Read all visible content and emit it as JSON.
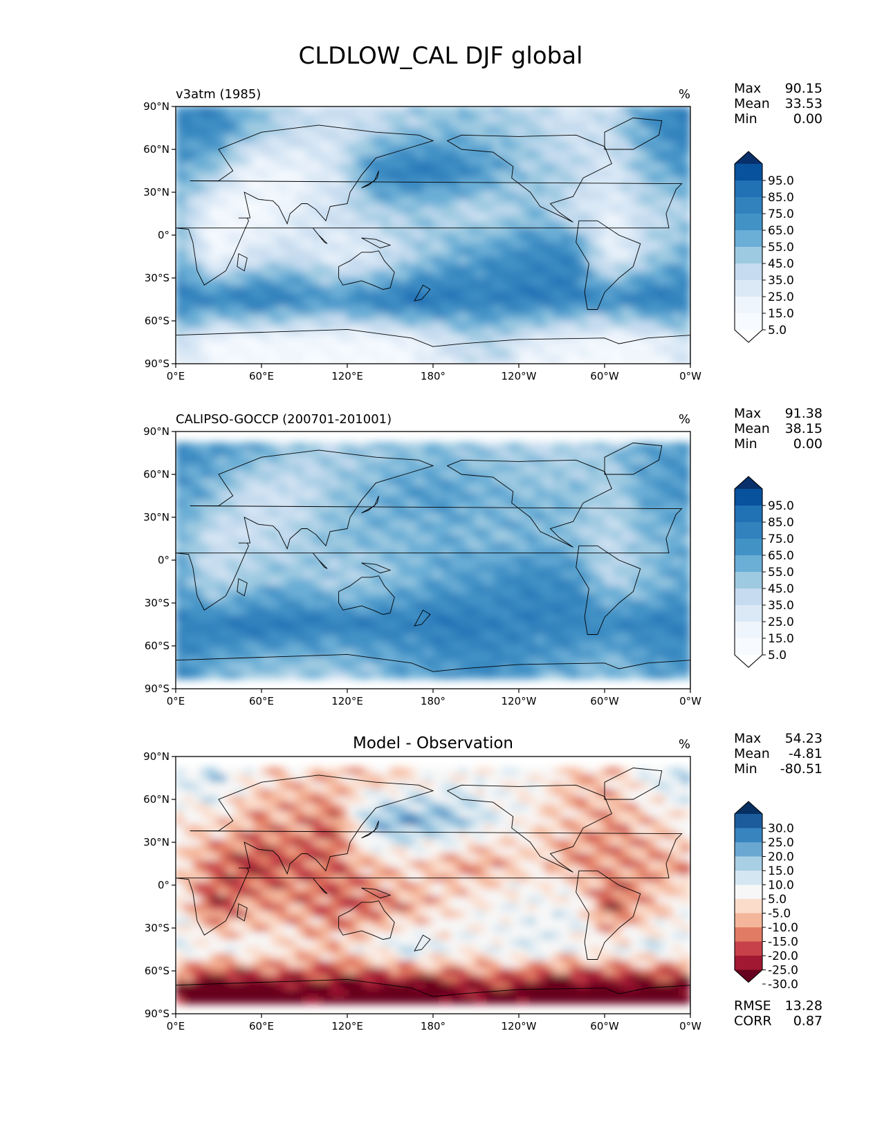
{
  "figure": {
    "title": "CLDLOW_CAL DJF global"
  },
  "chart_data": [
    {
      "type": "heatmap",
      "title": "v3atm (1985)",
      "units": "%",
      "stats": {
        "max_label": "Max",
        "max": "90.15",
        "mean_label": "Mean",
        "mean": "33.53",
        "min_label": "Min",
        "min": "0.00"
      },
      "xticks": [
        "0°E",
        "60°E",
        "120°E",
        "180°",
        "120°W",
        "60°W",
        "0°W"
      ],
      "yticks": [
        "90°N",
        "60°N",
        "30°N",
        "0°",
        "30°S",
        "60°S",
        "90°S"
      ],
      "xlim": [
        0,
        360
      ],
      "ylim": [
        -90,
        90
      ],
      "colorbar": {
        "extend": "both",
        "levels": [
          "95.0",
          "85.0",
          "75.0",
          "65.0",
          "55.0",
          "45.0",
          "35.0",
          "25.0",
          "15.0",
          "5.0"
        ],
        "colors": [
          "#08306b",
          "#08519c",
          "#2171b5",
          "#3182bd",
          "#4292c6",
          "#6baed6",
          "#9ecae1",
          "#c6dbef",
          "#dbe9f6",
          "#eff5fc",
          "#f7fbff",
          "#ffffff"
        ]
      },
      "field": {
        "label_rows": [
          {
            "lat": 75,
            "values": [
              70,
              65,
              45,
              30,
              25,
              30,
              40,
              45,
              40,
              35,
              25,
              30,
              60,
              70
            ]
          },
          {
            "lat": 45,
            "values": [
              55,
              40,
              10,
              10,
              20,
              65,
              75,
              70,
              55,
              40,
              35,
              20,
              45,
              60
            ]
          },
          {
            "lat": 15,
            "values": [
              45,
              5,
              5,
              15,
              25,
              35,
              40,
              35,
              30,
              45,
              30,
              15,
              30,
              35
            ]
          },
          {
            "lat": -15,
            "values": [
              55,
              5,
              25,
              30,
              15,
              20,
              35,
              50,
              60,
              65,
              70,
              10,
              35,
              55
            ]
          },
          {
            "lat": -45,
            "values": [
              75,
              70,
              75,
              70,
              60,
              70,
              80,
              75,
              70,
              75,
              70,
              65,
              75,
              70
            ]
          },
          {
            "lat": -75,
            "values": [
              30,
              5,
              5,
              5,
              5,
              5,
              10,
              25,
              35,
              15,
              10,
              5,
              10,
              25
            ]
          }
        ]
      }
    },
    {
      "type": "heatmap",
      "title": "CALIPSO-GOCCP (200701-201001)",
      "units": "%",
      "stats": {
        "max_label": "Max",
        "max": "91.38",
        "mean_label": "Mean",
        "mean": "38.15",
        "min_label": "Min",
        "min": "0.00"
      },
      "xticks": [
        "0°E",
        "60°E",
        "120°E",
        "180°",
        "120°W",
        "60°W",
        "0°W"
      ],
      "yticks": [
        "90°N",
        "60°N",
        "30°N",
        "0°",
        "30°S",
        "60°S",
        "90°S"
      ],
      "xlim": [
        0,
        360
      ],
      "ylim": [
        -90,
        90
      ],
      "colorbar": {
        "extend": "both",
        "levels": [
          "95.0",
          "85.0",
          "75.0",
          "65.0",
          "55.0",
          "45.0",
          "35.0",
          "25.0",
          "15.0",
          "5.0"
        ],
        "colors": [
          "#08306b",
          "#08519c",
          "#2171b5",
          "#3182bd",
          "#4292c6",
          "#6baed6",
          "#9ecae1",
          "#c6dbef",
          "#dbe9f6",
          "#eff5fc",
          "#f7fbff",
          "#ffffff"
        ]
      },
      "field": {
        "label_rows": [
          {
            "lat": 75,
            "values": [
              65,
              55,
              50,
              40,
              35,
              40,
              45,
              45,
              40,
              35,
              35,
              40,
              55,
              60
            ]
          },
          {
            "lat": 45,
            "values": [
              60,
              45,
              25,
              25,
              40,
              50,
              55,
              55,
              50,
              45,
              45,
              35,
              55,
              60
            ]
          },
          {
            "lat": 15,
            "values": [
              50,
              25,
              30,
              35,
              45,
              45,
              45,
              50,
              45,
              50,
              45,
              30,
              45,
              50
            ]
          },
          {
            "lat": -15,
            "values": [
              55,
              30,
              40,
              45,
              35,
              40,
              50,
              55,
              60,
              65,
              65,
              35,
              45,
              55
            ]
          },
          {
            "lat": -45,
            "values": [
              70,
              70,
              75,
              75,
              70,
              70,
              70,
              75,
              70,
              70,
              70,
              65,
              70,
              70
            ]
          },
          {
            "lat": -75,
            "values": [
              65,
              50,
              45,
              40,
              40,
              45,
              55,
              60,
              65,
              55,
              50,
              45,
              55,
              60
            ]
          }
        ]
      }
    },
    {
      "type": "heatmap",
      "title": "Model - Observation",
      "units": "%",
      "stats": {
        "max_label": "Max",
        "max": "54.23",
        "mean_label": "Mean",
        "mean": "-4.81",
        "min_label": "Min",
        "min": "-80.51"
      },
      "metrics": {
        "rmse_label": "RMSE",
        "rmse": "13.28",
        "corr_label": "CORR",
        "corr": "0.87"
      },
      "xticks": [
        "0°E",
        "60°E",
        "120°E",
        "180°",
        "120°W",
        "60°W",
        "0°W"
      ],
      "yticks": [
        "90°N",
        "60°N",
        "30°N",
        "0°",
        "30°S",
        "60°S",
        "90°S"
      ],
      "xlim": [
        0,
        360
      ],
      "ylim": [
        -90,
        90
      ],
      "colorbar": {
        "extend": "both",
        "levels": [
          "30.0",
          "25.0",
          "20.0",
          "15.0",
          "10.0",
          "5.0",
          "-5.0",
          "-10.0",
          "-15.0",
          "-20.0",
          "-25.0",
          "-30.0"
        ],
        "colors": [
          "#053061",
          "#1c5c9c",
          "#3784bf",
          "#6aa8d1",
          "#a8cfe4",
          "#d4e6f1",
          "#f7f7f7",
          "#fbdccb",
          "#f4b69a",
          "#e17c64",
          "#c6414a",
          "#a01831",
          "#67001f"
        ]
      },
      "field": {
        "label_rows": [
          {
            "lat": 75,
            "values": [
              5,
              10,
              -5,
              -10,
              -10,
              -10,
              -5,
              0,
              0,
              0,
              -10,
              -10,
              5,
              10
            ]
          },
          {
            "lat": 45,
            "values": [
              -5,
              -5,
              -15,
              -15,
              -20,
              15,
              20,
              15,
              5,
              -5,
              -10,
              -15,
              -10,
              0
            ]
          },
          {
            "lat": 15,
            "values": [
              -5,
              -20,
              -25,
              -20,
              -20,
              -10,
              -5,
              -15,
              -15,
              -5,
              -15,
              -15,
              -15,
              -15
            ]
          },
          {
            "lat": -15,
            "values": [
              0,
              -25,
              -15,
              -15,
              -20,
              -20,
              -15,
              -5,
              0,
              0,
              5,
              -25,
              -10,
              0
            ]
          },
          {
            "lat": -45,
            "values": [
              5,
              0,
              0,
              -5,
              -10,
              0,
              10,
              0,
              0,
              5,
              0,
              0,
              5,
              0
            ]
          },
          {
            "lat": -75,
            "values": [
              -30,
              -45,
              -40,
              -35,
              -35,
              -40,
              -45,
              -35,
              -30,
              -40,
              -40,
              -40,
              -45,
              -35
            ]
          }
        ]
      }
    }
  ]
}
